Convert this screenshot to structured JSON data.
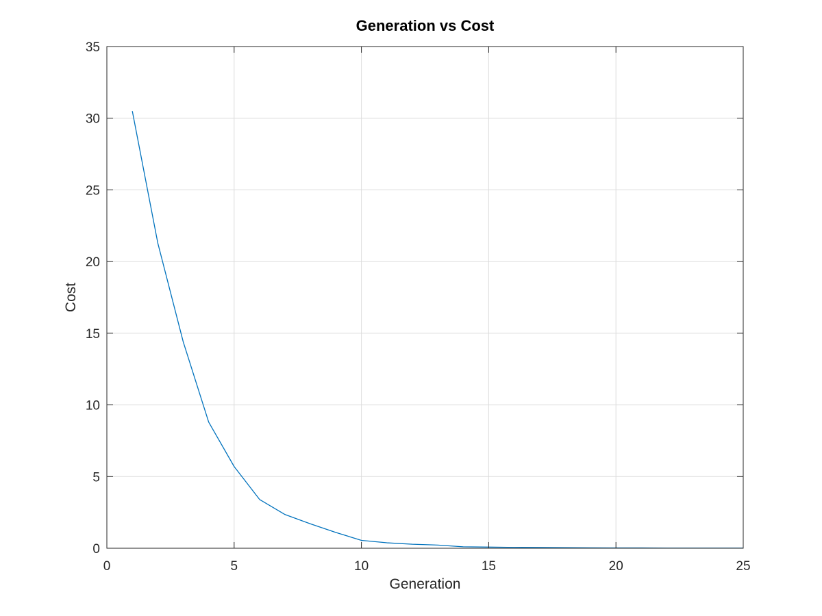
{
  "chart_data": {
    "type": "line",
    "title": "Generation vs Cost",
    "xlabel": "Generation",
    "ylabel": "Cost",
    "xlim": [
      0,
      25
    ],
    "ylim": [
      0,
      35
    ],
    "xticks": [
      "0",
      "5",
      "10",
      "15",
      "20",
      "25"
    ],
    "yticks": [
      "0",
      "5",
      "10",
      "15",
      "20",
      "25",
      "30",
      "35"
    ],
    "grid": true,
    "legend": "none",
    "series": [
      {
        "color": "#0072bd",
        "x": [
          1,
          2,
          3,
          4,
          5,
          6,
          7,
          8,
          9,
          10,
          11,
          12,
          13,
          14,
          15,
          16,
          17,
          18,
          19,
          20,
          21,
          22,
          23,
          24,
          25
        ],
        "y": [
          30.5,
          21.3,
          14.4,
          8.8,
          5.7,
          3.4,
          2.35,
          1.7,
          1.1,
          0.55,
          0.38,
          0.28,
          0.22,
          0.1,
          0.08,
          0.06,
          0.05,
          0.04,
          0.03,
          0.02,
          0.02,
          0.01,
          0.01,
          0.01,
          0.01
        ]
      }
    ]
  }
}
